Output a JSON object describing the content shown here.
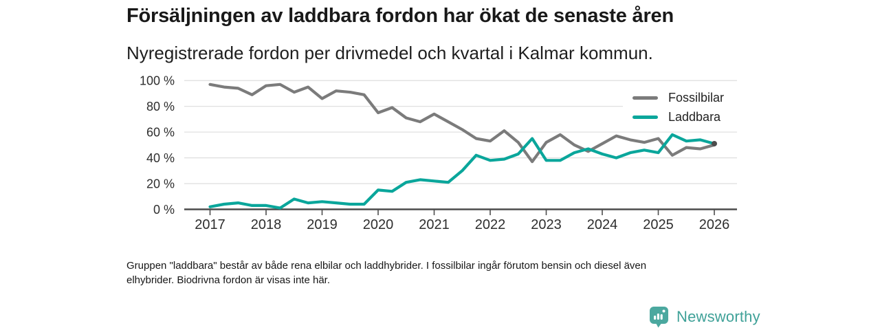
{
  "header": {
    "title": "Försäljningen av laddbara fordon har ökat de senaste åren",
    "subtitle": "Nyregistrerade fordon per drivmedel och kvartal i Kalmar kommun."
  },
  "legend": {
    "items": [
      {
        "label": "Fossilbilar",
        "color": "#7b7b7b"
      },
      {
        "label": "Laddbara",
        "color": "#0aa69b"
      }
    ]
  },
  "footer": {
    "note_line1": "Gruppen \"laddbara\" består av både rena elbilar och laddhybrider. I fossilbilar ingår förutom bensin och diesel även",
    "note_line2": "elhybrider. Biodrivna fordon är visas inte här."
  },
  "logo": {
    "text": "Newsworthy",
    "color": "#3fa198"
  },
  "chart_data": {
    "type": "line",
    "title": "Försäljningen av laddbara fordon har ökat de senaste åren",
    "subtitle": "Nyregistrerade fordon per drivmedel och kvartal i Kalmar kommun.",
    "unit": "%",
    "x_start": "2017 Q1",
    "x_end": "2026 Q1",
    "x_interval": "quarter",
    "x_tick_labels": [
      "2017",
      "2018",
      "2019",
      "2020",
      "2021",
      "2022",
      "2023",
      "2024",
      "2025",
      "2026"
    ],
    "y_ticks": [
      0,
      20,
      40,
      60,
      80,
      100
    ],
    "y_tick_labels": [
      "0 %",
      "20 %",
      "40 %",
      "60 %",
      "80 %",
      "100 %"
    ],
    "ylim": [
      0,
      100
    ],
    "grid": "horizontal",
    "legend_position": "top-right",
    "series": [
      {
        "name": "Fossilbilar",
        "color": "#7b7b7b",
        "values": [
          97,
          95,
          94,
          89,
          96,
          97,
          91,
          95,
          86,
          92,
          91,
          89,
          75,
          79,
          71,
          68,
          74,
          68,
          62,
          55,
          53,
          61,
          52,
          37,
          52,
          58,
          50,
          45,
          51,
          57,
          54,
          52,
          55,
          42,
          48,
          47,
          50
        ]
      },
      {
        "name": "Laddbara",
        "color": "#0aa69b",
        "values": [
          2,
          4,
          5,
          3,
          3,
          1,
          8,
          5,
          6,
          5,
          4,
          4,
          15,
          14,
          21,
          23,
          22,
          21,
          30,
          42,
          38,
          39,
          43,
          55,
          38,
          38,
          44,
          47,
          43,
          40,
          44,
          46,
          44,
          58,
          53,
          54,
          51
        ]
      }
    ],
    "end_marker": {
      "series": "Laddbara",
      "x": "2026 Q1",
      "color": "#4c4c4c"
    }
  }
}
